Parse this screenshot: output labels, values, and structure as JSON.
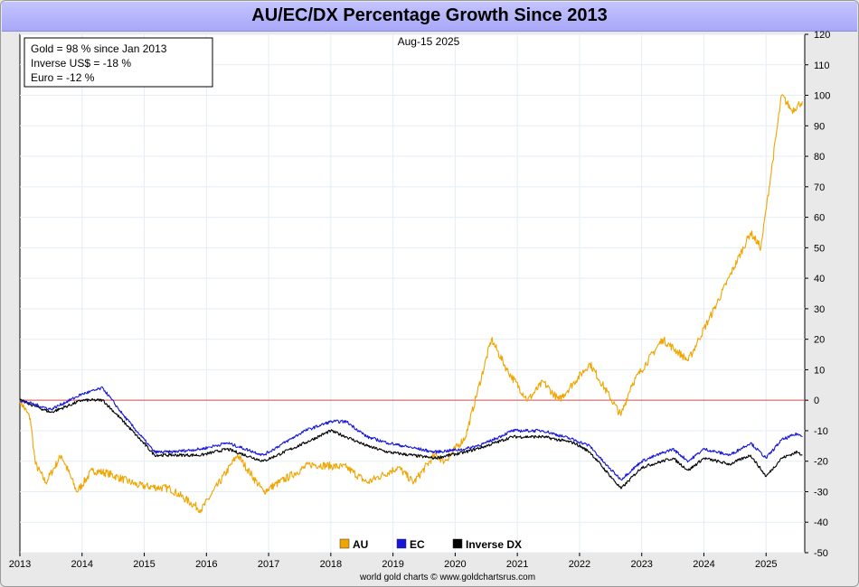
{
  "chart_data": {
    "type": "line",
    "title": "AU/EC/DX Percentage Growth Since 2013",
    "date_label": "Aug-15  2025",
    "annotations": [
      "Gold = 98 % since Jan 2013",
      "Inverse US$ = -18 %",
      "Euro = -12 %"
    ],
    "footer": "world gold charts © www.goldchartsrus.com",
    "x_ticks": [
      "2013",
      "2014",
      "2015",
      "2016",
      "2017",
      "2018",
      "2019",
      "2020",
      "2021",
      "2022",
      "2023",
      "2024",
      "2025"
    ],
    "y_ticks": [
      120,
      110,
      100,
      90,
      80,
      70,
      60,
      50,
      40,
      30,
      20,
      10,
      0,
      -10,
      -20,
      -30,
      -40,
      -50
    ],
    "xlim": [
      "2013-01-01",
      "2025-08-15"
    ],
    "ylim": [
      -50,
      120
    ],
    "grid": true,
    "zero_line_color": "#d05050",
    "legend_position": "bottom-center",
    "series": [
      {
        "name": "AU",
        "color": "#f0a500",
        "x": [
          "2013-01",
          "2013-03",
          "2013-04",
          "2013-06",
          "2013-09",
          "2013-12",
          "2014-03",
          "2014-06",
          "2014-12",
          "2015-06",
          "2015-12",
          "2016-07",
          "2016-12",
          "2017-09",
          "2018-04",
          "2018-08",
          "2019-02",
          "2019-05",
          "2019-09",
          "2019-11",
          "2020-03",
          "2020-08",
          "2020-11",
          "2021-03",
          "2021-06",
          "2021-09",
          "2022-03",
          "2022-09",
          "2022-11",
          "2023-05",
          "2023-10",
          "2023-12",
          "2024-03",
          "2024-10",
          "2024-12",
          "2025-04",
          "2025-06",
          "2025-08"
        ],
        "y": [
          0,
          -6,
          -21,
          -27,
          -18,
          -30,
          -23,
          -24,
          -28,
          -29,
          -36,
          -18,
          -30,
          -21,
          -22,
          -27,
          -22,
          -27,
          -18,
          -20,
          -12,
          20,
          10,
          0,
          6,
          0,
          12,
          -5,
          5,
          20,
          13,
          20,
          30,
          55,
          50,
          100,
          95,
          98
        ]
      },
      {
        "name": "EC",
        "color": "#1515dd",
        "x": [
          "2013-01",
          "2013-07",
          "2014-01",
          "2014-05",
          "2014-09",
          "2015-03",
          "2015-06",
          "2015-12",
          "2016-05",
          "2016-12",
          "2017-08",
          "2018-01",
          "2018-04",
          "2018-08",
          "2018-12",
          "2019-09",
          "2020-03",
          "2020-07",
          "2020-12",
          "2021-06",
          "2021-12",
          "2022-03",
          "2022-06",
          "2022-09",
          "2023-01",
          "2023-07",
          "2023-10",
          "2024-01",
          "2024-06",
          "2024-10",
          "2025-01",
          "2025-04",
          "2025-07",
          "2025-08"
        ],
        "y": [
          0,
          -3,
          2,
          4,
          -5,
          -17,
          -17,
          -16,
          -14,
          -18,
          -10,
          -7,
          -7,
          -12,
          -14,
          -17,
          -16,
          -14,
          -10,
          -10,
          -13,
          -15,
          -21,
          -26,
          -20,
          -16,
          -20,
          -16,
          -18,
          -14,
          -19,
          -13,
          -11,
          -12
        ]
      },
      {
        "name": "Inverse DX",
        "color": "#000000",
        "x": [
          "2013-01",
          "2013-07",
          "2014-01",
          "2014-05",
          "2014-09",
          "2015-03",
          "2015-06",
          "2015-12",
          "2016-05",
          "2016-12",
          "2017-08",
          "2018-01",
          "2018-04",
          "2018-08",
          "2018-12",
          "2019-09",
          "2020-03",
          "2020-07",
          "2020-12",
          "2021-06",
          "2021-12",
          "2022-03",
          "2022-06",
          "2022-09",
          "2023-01",
          "2023-07",
          "2023-10",
          "2024-01",
          "2024-06",
          "2024-10",
          "2025-01",
          "2025-04",
          "2025-07",
          "2025-08"
        ],
        "y": [
          0,
          -4,
          0,
          0,
          -7,
          -18,
          -18,
          -18,
          -16,
          -20,
          -14,
          -10,
          -12,
          -15,
          -17,
          -19,
          -17,
          -15,
          -12,
          -12,
          -14,
          -17,
          -23,
          -29,
          -22,
          -19,
          -23,
          -19,
          -21,
          -18,
          -25,
          -19,
          -17,
          -18
        ]
      }
    ]
  }
}
